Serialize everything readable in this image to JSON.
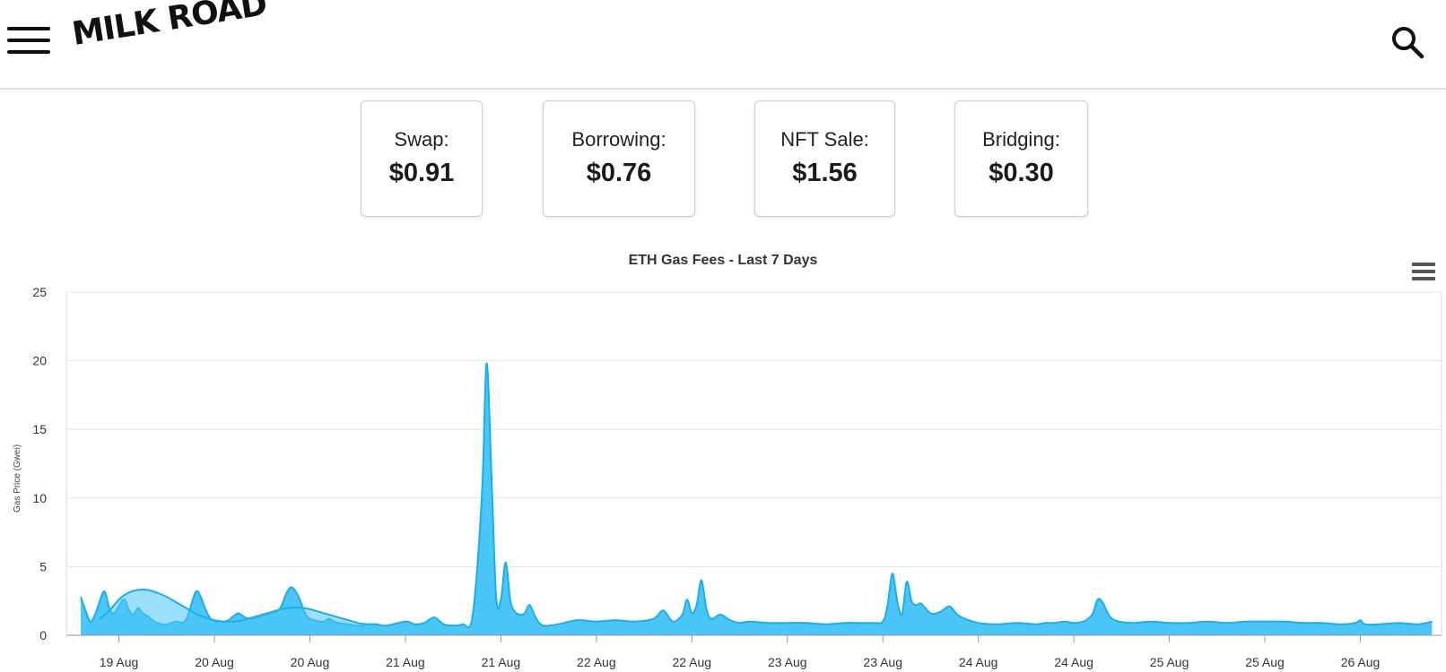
{
  "header": {
    "logo_text": "MILK ROAD",
    "menu_icon": "hamburger-icon",
    "search_icon": "search-icon"
  },
  "fee_cards": [
    {
      "label": "Swap:",
      "value": "$0.91"
    },
    {
      "label": "Borrowing:",
      "value": "$0.76"
    },
    {
      "label": "NFT Sale:",
      "value": "$1.56"
    },
    {
      "label": "Bridging:",
      "value": "$0.30"
    }
  ],
  "chart_menu_icon": "chart-menu-icon",
  "colors": {
    "fill": "#4cc6f7",
    "line": "#1aaeea",
    "grid": "#e4e4e4"
  },
  "chart_data": {
    "type": "area",
    "title": "ETH Gas Fees - Last 7 Days",
    "ylabel": "Gas Price (Gwei)",
    "xlabel": "",
    "ylim": [
      0,
      25
    ],
    "yticks": [
      0,
      5,
      10,
      15,
      20,
      25
    ],
    "grid": true,
    "legend": "none",
    "x_tick_labels": [
      "19 Aug",
      "20 Aug",
      "20 Aug",
      "21 Aug",
      "21 Aug",
      "22 Aug",
      "22 Aug",
      "23 Aug",
      "23 Aug",
      "24 Aug",
      "24 Aug",
      "25 Aug",
      "25 Aug",
      "26 Aug"
    ],
    "x_tick_positions": [
      0.2,
      1.2,
      2.2,
      3.2,
      4.2,
      5.2,
      6.2,
      7.2,
      8.2,
      9.2,
      10.2,
      11.2,
      12.2,
      13.2
    ],
    "xlim": [
      -0.35,
      14.05
    ],
    "series": [
      {
        "x": [
          -0.2,
          -0.15,
          -0.1,
          -0.05,
          0.0,
          0.05,
          0.1,
          0.15,
          0.25,
          0.3,
          0.35,
          0.4,
          0.45,
          0.5,
          0.55,
          0.6,
          0.65,
          0.7,
          0.75,
          0.8,
          0.9,
          1.0,
          1.05,
          1.1,
          1.15,
          1.2,
          1.25,
          1.3,
          1.35,
          1.4,
          1.45,
          1.5,
          1.55,
          1.6,
          1.65,
          1.7,
          1.75,
          1.8,
          1.85,
          1.9,
          1.95,
          2.0,
          2.05,
          2.1,
          2.15,
          2.2,
          2.25,
          2.3,
          2.35,
          2.4,
          2.45,
          2.5,
          2.6,
          2.7,
          2.75,
          2.8,
          2.85,
          2.9,
          3.0,
          3.2,
          3.3,
          3.4,
          3.5,
          3.6,
          3.7,
          3.8,
          3.9,
          4.0,
          4.05,
          4.1,
          4.15,
          4.2,
          4.25,
          4.3,
          4.35,
          4.4,
          4.45,
          4.5,
          4.55,
          4.6,
          4.65,
          4.7,
          4.8,
          5.0,
          5.2,
          5.4,
          5.6,
          5.8,
          5.9,
          6.0,
          6.1,
          6.15,
          6.2,
          6.25,
          6.3,
          6.35,
          6.4,
          6.5,
          6.6,
          6.7,
          6.8,
          7.0,
          7.2,
          7.4,
          7.6,
          7.8,
          7.95,
          8.1,
          8.2,
          8.25,
          8.3,
          8.35,
          8.4,
          8.45,
          8.5,
          8.55,
          8.6,
          8.7,
          8.8,
          8.9,
          9.0,
          9.2,
          9.4,
          9.6,
          9.8,
          9.9,
          10.0,
          10.1,
          10.2,
          10.3,
          10.35,
          10.4,
          10.45,
          10.5,
          10.6,
          10.8,
          11.0,
          11.2,
          11.4,
          11.6,
          11.8,
          12.0,
          12.2,
          12.4,
          12.6,
          12.8,
          13.0,
          13.15,
          13.2,
          13.25,
          13.4,
          13.6,
          13.8,
          13.95
        ],
        "values": [
          2.8,
          1.8,
          1.0,
          1.5,
          2.5,
          3.2,
          2.0,
          1.6,
          2.6,
          1.9,
          1.5,
          2.0,
          1.6,
          1.4,
          1.1,
          0.9,
          0.8,
          0.8,
          0.9,
          1.0,
          1.1,
          3.1,
          2.9,
          2.0,
          1.3,
          1.0,
          1.0,
          1.0,
          1.1,
          1.4,
          1.6,
          1.4,
          1.2,
          1.2,
          1.3,
          1.4,
          1.5,
          1.6,
          1.7,
          2.1,
          3.0,
          3.5,
          3.2,
          2.5,
          1.6,
          1.2,
          1.1,
          1.0,
          1.0,
          1.2,
          1.0,
          0.9,
          0.8,
          0.7,
          0.7,
          0.8,
          0.8,
          0.8,
          0.7,
          1.0,
          0.8,
          0.9,
          1.3,
          0.8,
          0.7,
          0.8,
          1.2,
          10.0,
          19.8,
          12.0,
          2.8,
          2.6,
          5.3,
          2.5,
          1.7,
          1.5,
          1.6,
          2.2,
          1.5,
          0.9,
          0.7,
          0.7,
          0.8,
          1.1,
          1.0,
          1.1,
          1.0,
          1.2,
          1.8,
          1.0,
          1.5,
          2.6,
          1.6,
          2.2,
          4.0,
          2.0,
          1.2,
          1.5,
          1.1,
          0.9,
          1.0,
          0.9,
          0.9,
          0.9,
          0.8,
          0.9,
          0.9,
          0.9,
          1.0,
          2.2,
          4.5,
          2.5,
          1.5,
          3.9,
          2.5,
          2.2,
          2.3,
          1.6,
          1.7,
          2.1,
          1.4,
          0.9,
          0.8,
          0.9,
          0.8,
          0.9,
          0.9,
          1.0,
          0.9,
          1.0,
          1.2,
          1.6,
          2.6,
          2.4,
          1.2,
          0.9,
          1.0,
          0.9,
          0.9,
          1.0,
          0.9,
          1.0,
          1.0,
          1.0,
          0.9,
          0.9,
          0.8,
          0.9,
          1.1,
          0.8,
          0.8,
          0.9,
          0.8,
          1.0
        ]
      },
      {
        "x": [
          0.0,
          0.1,
          0.2,
          0.3,
          0.4,
          0.5,
          0.6,
          0.7,
          0.8,
          0.9,
          1.0,
          1.1,
          1.2,
          1.3,
          1.4,
          1.5,
          1.6,
          1.7,
          1.8,
          1.9,
          2.0,
          2.1,
          2.2,
          2.3,
          2.4,
          2.5,
          2.6,
          2.7,
          2.8
        ],
        "values": [
          1.2,
          1.8,
          2.6,
          3.1,
          3.3,
          3.3,
          3.1,
          2.8,
          2.4,
          2.0,
          1.6,
          1.3,
          1.1,
          1.0,
          1.0,
          1.1,
          1.3,
          1.5,
          1.7,
          1.9,
          2.0,
          2.0,
          1.9,
          1.7,
          1.5,
          1.3,
          1.1,
          0.9,
          0.8
        ]
      }
    ]
  }
}
